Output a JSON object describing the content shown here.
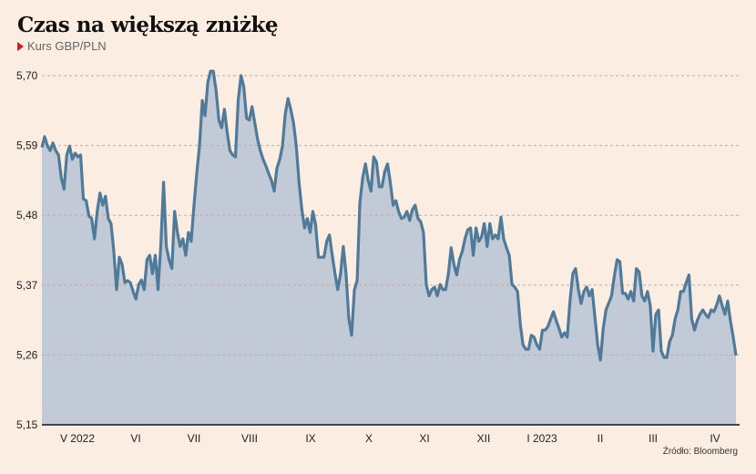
{
  "chart_data": {
    "type": "area",
    "title": "Czas na większą zniżkę",
    "subtitle": "Kurs GBP/PLN",
    "source": "Źródło: Bloomberg",
    "ylim": [
      5.15,
      5.72
    ],
    "yticks": [
      5.15,
      5.26,
      5.37,
      5.48,
      5.59,
      5.7
    ],
    "ytick_labels": [
      "5,15",
      "5,26",
      "5,37",
      "5,48",
      "5,59",
      "5,70"
    ],
    "xtick_labels": [
      "V 2022",
      "VI",
      "VII",
      "VIII",
      "IX",
      "X",
      "XI",
      "XII",
      "I 2023",
      "II",
      "III",
      "IV"
    ],
    "colors": {
      "line": "#4f7a99",
      "fill": "#c2c9d7",
      "grid": "#b9b0a8",
      "accent": "#e0161b"
    },
    "series": [
      {
        "name": "GBP/PLN",
        "values": [
          5.587,
          5.604,
          5.589,
          5.582,
          5.594,
          5.582,
          5.575,
          5.539,
          5.521,
          5.575,
          5.589,
          5.568,
          5.578,
          5.572,
          5.575,
          5.506,
          5.503,
          5.479,
          5.475,
          5.443,
          5.486,
          5.515,
          5.496,
          5.51,
          5.475,
          5.467,
          5.424,
          5.363,
          5.414,
          5.403,
          5.374,
          5.377,
          5.374,
          5.36,
          5.348,
          5.371,
          5.378,
          5.363,
          5.41,
          5.417,
          5.388,
          5.417,
          5.363,
          5.431,
          5.532,
          5.431,
          5.41,
          5.396,
          5.486,
          5.453,
          5.431,
          5.443,
          5.417,
          5.453,
          5.439,
          5.496,
          5.546,
          5.589,
          5.661,
          5.637,
          5.69,
          5.707,
          5.707,
          5.676,
          5.63,
          5.618,
          5.647,
          5.611,
          5.582,
          5.575,
          5.572,
          5.661,
          5.7,
          5.683,
          5.633,
          5.63,
          5.651,
          5.625,
          5.6,
          5.582,
          5.568,
          5.558,
          5.546,
          5.535,
          5.518,
          5.554,
          5.568,
          5.589,
          5.64,
          5.664,
          5.647,
          5.625,
          5.589,
          5.532,
          5.489,
          5.46,
          5.475,
          5.453,
          5.486,
          5.465,
          5.414,
          5.414,
          5.414,
          5.439,
          5.449,
          5.417,
          5.388,
          5.363,
          5.388,
          5.431,
          5.388,
          5.317,
          5.291,
          5.363,
          5.377,
          5.5,
          5.539,
          5.561,
          5.535,
          5.518,
          5.572,
          5.564,
          5.525,
          5.525,
          5.549,
          5.561,
          5.532,
          5.496,
          5.503,
          5.486,
          5.475,
          5.477,
          5.486,
          5.472,
          5.489,
          5.496,
          5.475,
          5.47,
          5.453,
          5.371,
          5.353,
          5.363,
          5.367,
          5.353,
          5.371,
          5.363,
          5.363,
          5.388,
          5.429,
          5.403,
          5.386,
          5.41,
          5.423,
          5.443,
          5.457,
          5.46,
          5.417,
          5.46,
          5.439,
          5.446,
          5.467,
          5.431,
          5.467,
          5.443,
          5.449,
          5.443,
          5.477,
          5.443,
          5.429,
          5.417,
          5.371,
          5.367,
          5.36,
          5.309,
          5.276,
          5.269,
          5.269,
          5.291,
          5.288,
          5.276,
          5.269,
          5.299,
          5.299,
          5.305,
          5.317,
          5.328,
          5.314,
          5.302,
          5.288,
          5.295,
          5.288,
          5.345,
          5.388,
          5.396,
          5.363,
          5.341,
          5.36,
          5.367,
          5.353,
          5.363,
          5.319,
          5.276,
          5.252,
          5.302,
          5.331,
          5.342,
          5.353,
          5.384,
          5.41,
          5.407,
          5.357,
          5.357,
          5.348,
          5.36,
          5.345,
          5.396,
          5.391,
          5.353,
          5.345,
          5.36,
          5.338,
          5.266,
          5.324,
          5.331,
          5.266,
          5.256,
          5.256,
          5.281,
          5.291,
          5.317,
          5.331,
          5.36,
          5.36,
          5.374,
          5.386,
          5.317,
          5.299,
          5.314,
          5.324,
          5.331,
          5.324,
          5.319,
          5.331,
          5.328,
          5.338,
          5.353,
          5.338,
          5.324,
          5.345,
          5.314,
          5.288,
          5.259
        ]
      }
    ]
  }
}
